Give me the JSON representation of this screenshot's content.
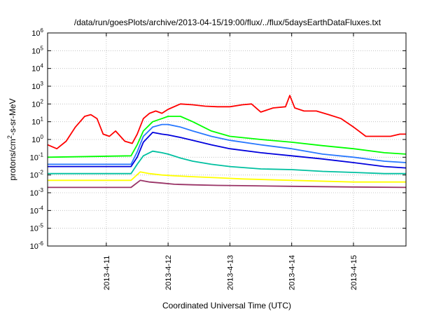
{
  "chart_data": {
    "type": "line",
    "title": "/data/run/goesPlots/archive/2013-04-15/19:00/flux/../flux/5daysEarthDataFluxes.txt",
    "xlabel": "Coordinated Universal Time (UTC)",
    "ylabel_parts": [
      "protons/cm",
      "2",
      "-s-sr-MeV"
    ],
    "x_axis": {
      "unit": "days (2013-04)",
      "range": [
        10.05,
        15.85
      ],
      "ticks": [
        {
          "value": 11,
          "label": "2013-4-11"
        },
        {
          "value": 12,
          "label": "2013-4-12"
        },
        {
          "value": 13,
          "label": "2013-4-13"
        },
        {
          "value": 14,
          "label": "2013-4-14"
        },
        {
          "value": 15,
          "label": "2013-4-15"
        }
      ]
    },
    "y_axis": {
      "scale": "log",
      "range": [
        -6,
        6
      ],
      "tick_exponents": [
        -6,
        -5,
        -4,
        -3,
        -2,
        -1,
        0,
        1,
        2,
        3,
        4,
        5,
        6
      ]
    },
    "grid": true,
    "series": [
      {
        "color": "#ff0000",
        "x": [
          10.05,
          10.2,
          10.35,
          10.5,
          10.65,
          10.75,
          10.85,
          10.95,
          11.05,
          11.15,
          11.3,
          11.42,
          11.5,
          11.6,
          11.7,
          11.8,
          11.9,
          12.0,
          12.2,
          12.4,
          12.6,
          12.8,
          13.0,
          13.2,
          13.35,
          13.5,
          13.7,
          13.9,
          13.97,
          14.05,
          14.2,
          14.4,
          14.6,
          14.8,
          15.0,
          15.2,
          15.4,
          15.6,
          15.75,
          15.85
        ],
        "y": [
          0.5,
          0.3,
          0.8,
          5,
          20,
          25,
          15,
          2,
          1.5,
          3,
          0.8,
          0.6,
          2,
          15,
          30,
          40,
          30,
          50,
          100,
          90,
          75,
          70,
          70,
          90,
          100,
          35,
          60,
          70,
          300,
          60,
          40,
          40,
          25,
          15,
          5,
          1.5,
          1.5,
          1.5,
          2,
          2
        ]
      },
      {
        "color": "#00ff00",
        "x": [
          10.05,
          11.4,
          11.5,
          11.6,
          11.75,
          11.9,
          12.0,
          12.2,
          12.4,
          12.7,
          13.0,
          13.5,
          14.0,
          14.5,
          15.0,
          15.5,
          15.85
        ],
        "y": [
          0.1,
          0.12,
          0.5,
          3,
          10,
          15,
          20,
          20,
          10,
          3,
          1.5,
          1,
          0.7,
          0.45,
          0.3,
          0.18,
          0.15
        ]
      },
      {
        "color": "#2878ff",
        "x": [
          10.05,
          11.4,
          11.5,
          11.6,
          11.75,
          11.9,
          12.0,
          12.2,
          12.4,
          12.7,
          13.0,
          13.5,
          14.0,
          14.5,
          15.0,
          15.5,
          15.85
        ],
        "y": [
          0.04,
          0.04,
          0.2,
          1.5,
          5,
          7,
          7,
          5,
          3,
          1.5,
          0.9,
          0.5,
          0.3,
          0.15,
          0.1,
          0.06,
          0.05
        ]
      },
      {
        "color": "#0000dd",
        "x": [
          10.05,
          11.4,
          11.5,
          11.6,
          11.75,
          11.9,
          12.0,
          12.2,
          12.4,
          12.7,
          13.0,
          13.5,
          14.0,
          14.5,
          15.0,
          15.5,
          15.85
        ],
        "y": [
          0.03,
          0.03,
          0.1,
          0.7,
          2.5,
          2,
          1.8,
          1.3,
          0.9,
          0.5,
          0.3,
          0.18,
          0.12,
          0.08,
          0.05,
          0.03,
          0.025
        ]
      },
      {
        "color": "#00c0a0",
        "x": [
          10.05,
          11.4,
          11.5,
          11.6,
          11.75,
          11.9,
          12.0,
          12.2,
          12.4,
          12.7,
          13.0,
          13.5,
          14.0,
          14.5,
          15.0,
          15.5,
          15.85
        ],
        "y": [
          0.012,
          0.012,
          0.04,
          0.12,
          0.22,
          0.18,
          0.15,
          0.09,
          0.06,
          0.04,
          0.03,
          0.022,
          0.02,
          0.016,
          0.014,
          0.012,
          0.012
        ]
      },
      {
        "color": "#ffff00",
        "x": [
          10.05,
          11.4,
          11.55,
          11.7,
          11.9,
          12.1,
          12.4,
          12.8,
          13.2,
          14.0,
          15.0,
          15.85
        ],
        "y": [
          0.005,
          0.005,
          0.015,
          0.012,
          0.01,
          0.009,
          0.008,
          0.007,
          0.006,
          0.005,
          0.004,
          0.004
        ]
      },
      {
        "color": "#993366",
        "x": [
          10.05,
          11.4,
          11.55,
          11.7,
          11.9,
          12.1,
          12.4,
          12.8,
          13.2,
          14.0,
          15.0,
          15.85
        ],
        "y": [
          0.002,
          0.002,
          0.005,
          0.004,
          0.0035,
          0.003,
          0.0028,
          0.0026,
          0.0025,
          0.0023,
          0.0021,
          0.002
        ]
      }
    ]
  }
}
